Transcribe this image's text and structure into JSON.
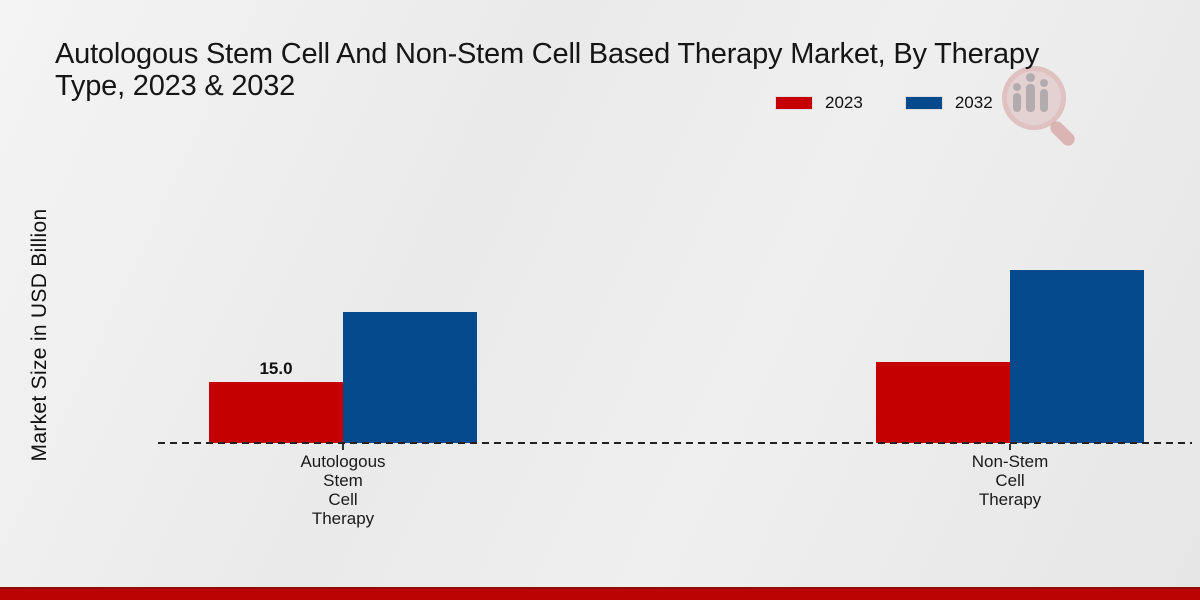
{
  "page": {
    "title_line1": "Autologous Stem Cell And Non-Stem Cell Based Therapy Market, By Therapy",
    "title_line2": "Type, 2023 & 2032"
  },
  "chart_data": {
    "type": "bar",
    "title": "Autologous Stem Cell And Non-Stem Cell Based Therapy Market, By Therapy Type, 2023 & 2032",
    "xlabel": "",
    "ylabel": "Market Size in USD Billion",
    "ylim": [
      0,
      45
    ],
    "grid": false,
    "legend_position": "top-right",
    "x_axis_style": "dashed",
    "categories": [
      "Autologous Stem Cell Therapy",
      "Non-Stem Cell Therapy"
    ],
    "category_lines": [
      [
        "Autologous",
        "Stem",
        "Cell",
        "Therapy"
      ],
      [
        "Non-Stem",
        "Cell",
        "Therapy"
      ]
    ],
    "series": [
      {
        "name": "2023",
        "color": "#c40001",
        "values": [
          15.0,
          20.0
        ],
        "labels": [
          "15.0",
          ""
        ]
      },
      {
        "name": "2032",
        "color": "#04498c",
        "values": [
          32.4,
          42.8
        ],
        "labels": [
          "",
          ""
        ]
      }
    ]
  },
  "colors": {
    "bar_2023": "#c40001",
    "bar_2032": "#04498c",
    "bottom_strip": "#ba0302",
    "axis": "#222222",
    "background": "#eaeaea"
  }
}
